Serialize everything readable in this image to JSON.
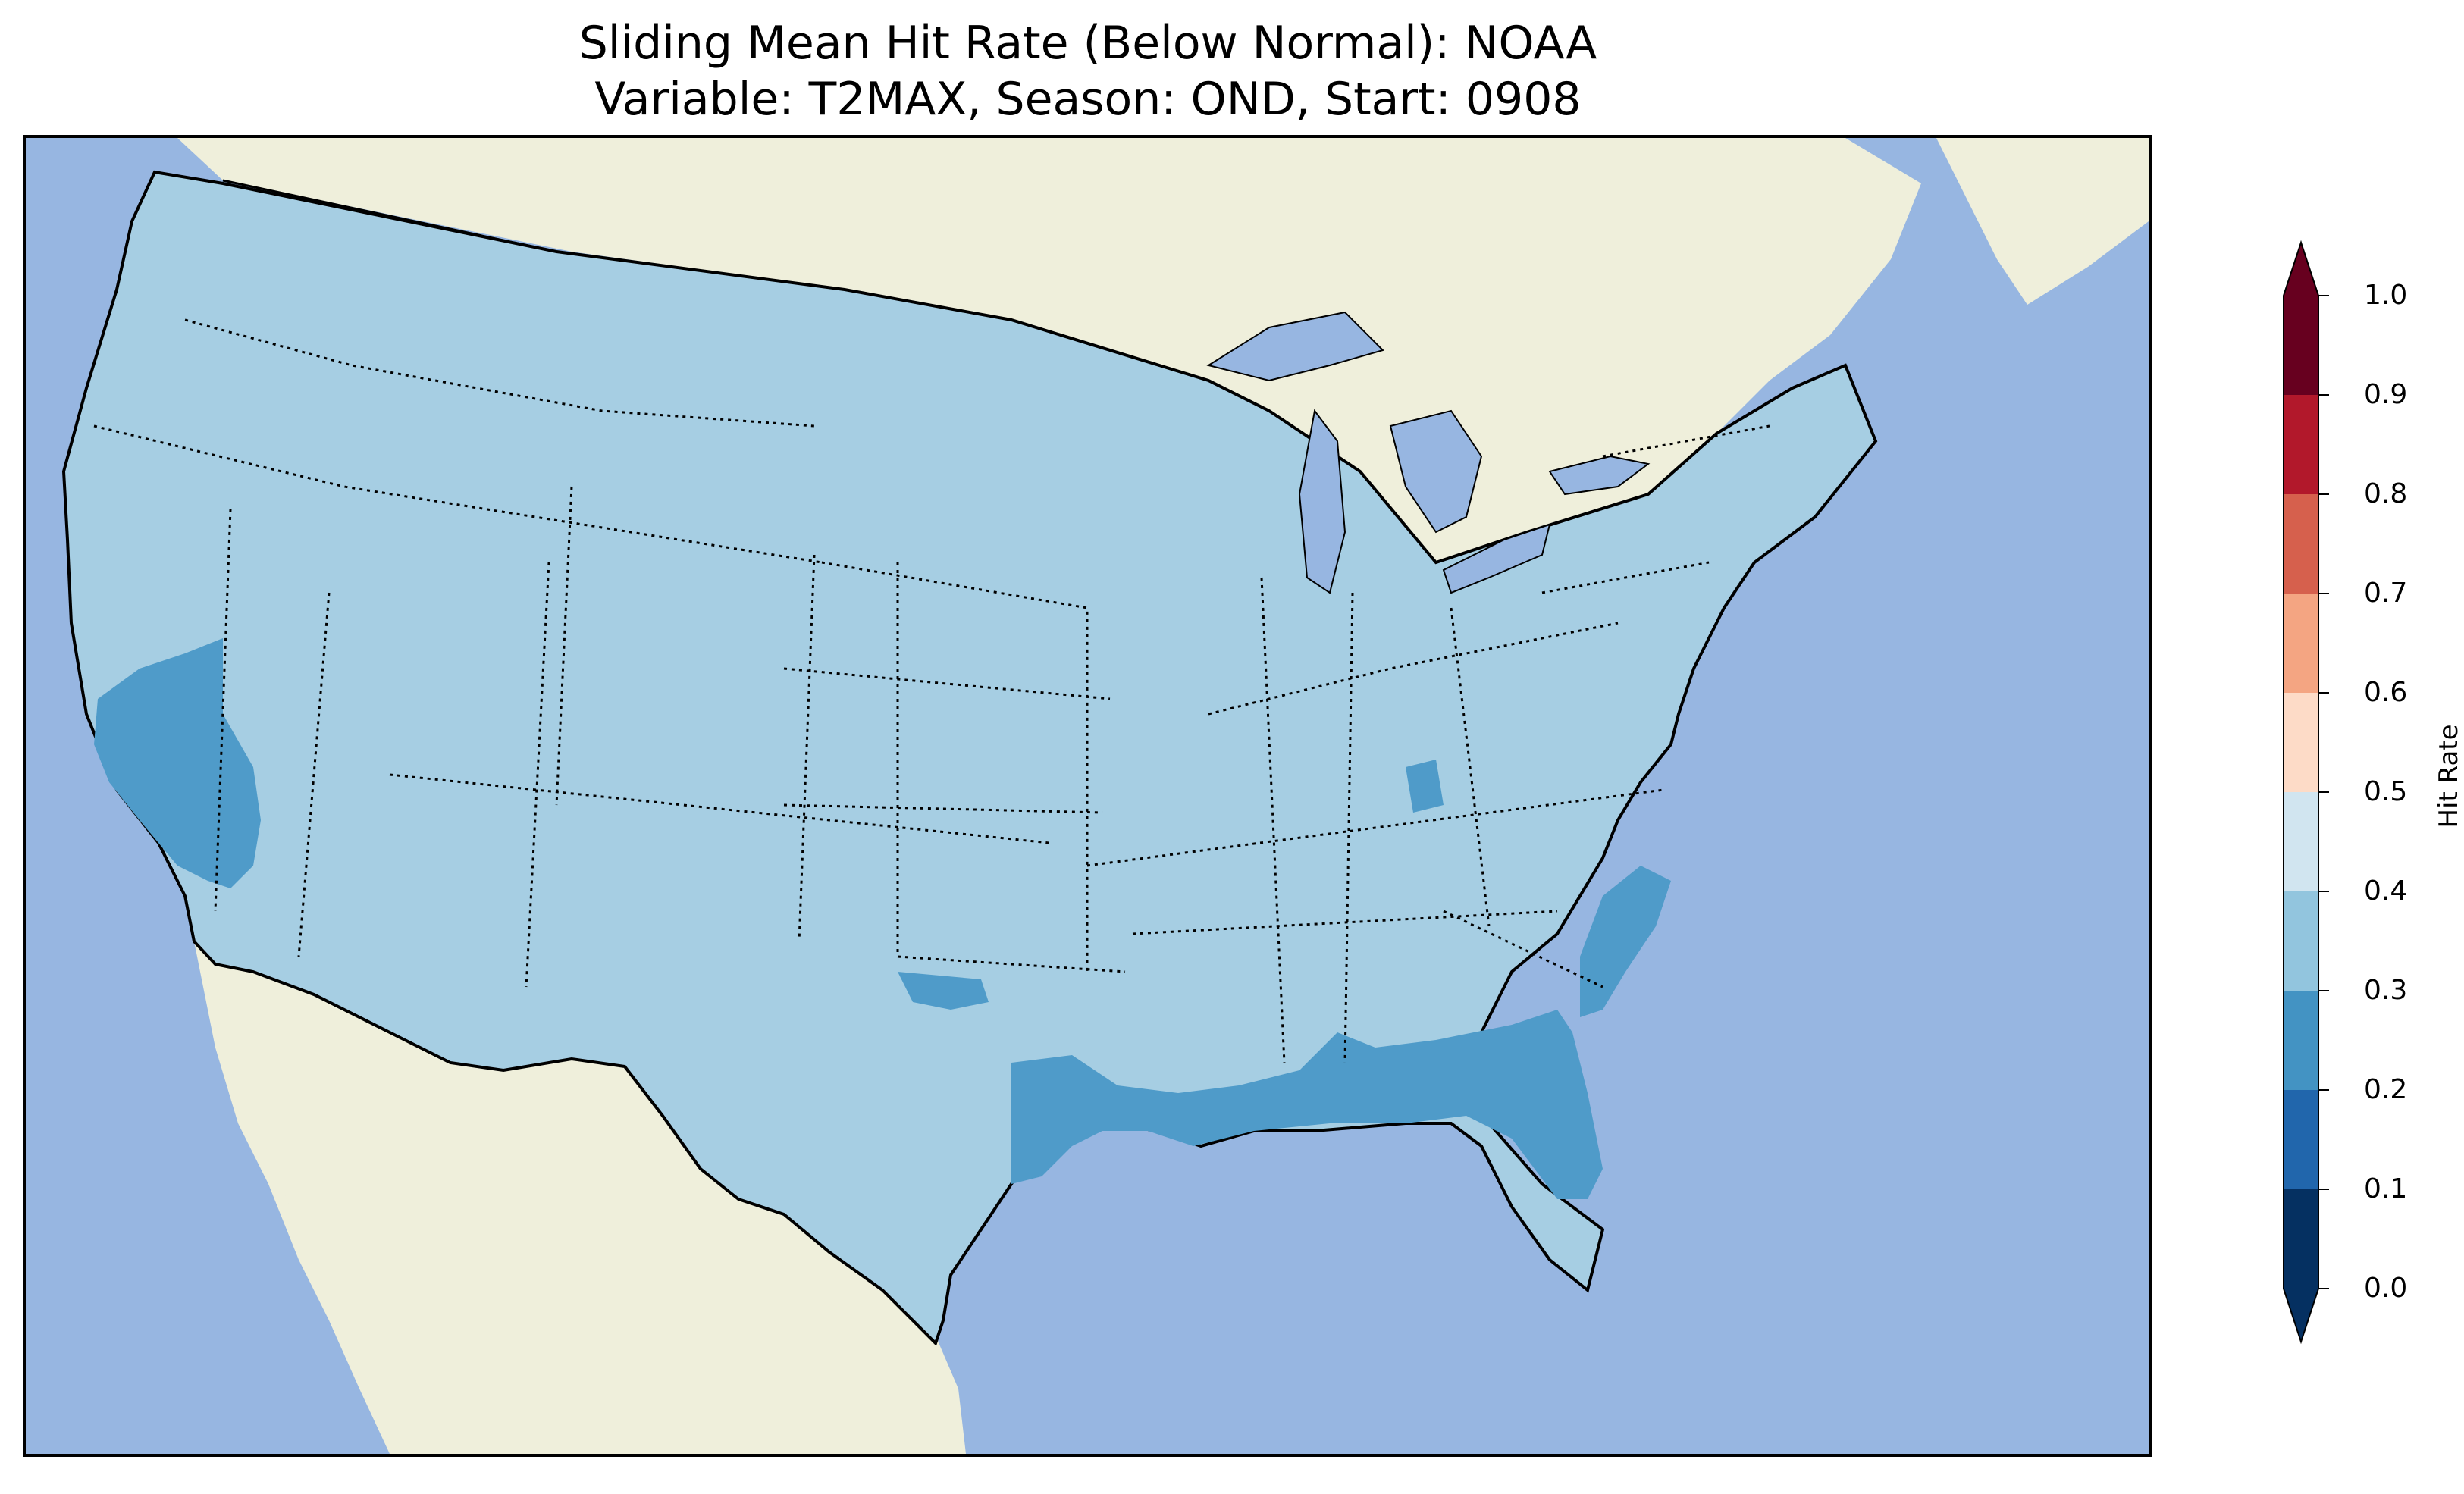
{
  "title": {
    "line1": "Sliding Mean Hit Rate (Below Normal): NOAA",
    "line2": "Variable: T2MAX, Season: OND, Start: 0908"
  },
  "colors": {
    "ocean": "#97b6e1",
    "land": "#efefdb",
    "hit_0_3_0_4": "#a6cee3",
    "hit_0_2_0_3": "#4f9bc9"
  },
  "colorbar": {
    "label": "Hit Rate",
    "ticks": [
      "0.0",
      "0.1",
      "0.2",
      "0.3",
      "0.4",
      "0.5",
      "0.6",
      "0.7",
      "0.8",
      "0.9",
      "1.0"
    ],
    "bins": [
      {
        "range": "0.0-0.1",
        "color": "#053061"
      },
      {
        "range": "0.1-0.2",
        "color": "#2166ac"
      },
      {
        "range": "0.2-0.3",
        "color": "#4393c3"
      },
      {
        "range": "0.3-0.4",
        "color": "#92c5de"
      },
      {
        "range": "0.4-0.5",
        "color": "#d1e5f0"
      },
      {
        "range": "0.5-0.6",
        "color": "#fddbc7"
      },
      {
        "range": "0.6-0.7",
        "color": "#f4a582"
      },
      {
        "range": "0.7-0.8",
        "color": "#d6604d"
      },
      {
        "range": "0.8-0.9",
        "color": "#b2182b"
      },
      {
        "range": "0.9-1.0",
        "color": "#67001f"
      }
    ]
  }
}
